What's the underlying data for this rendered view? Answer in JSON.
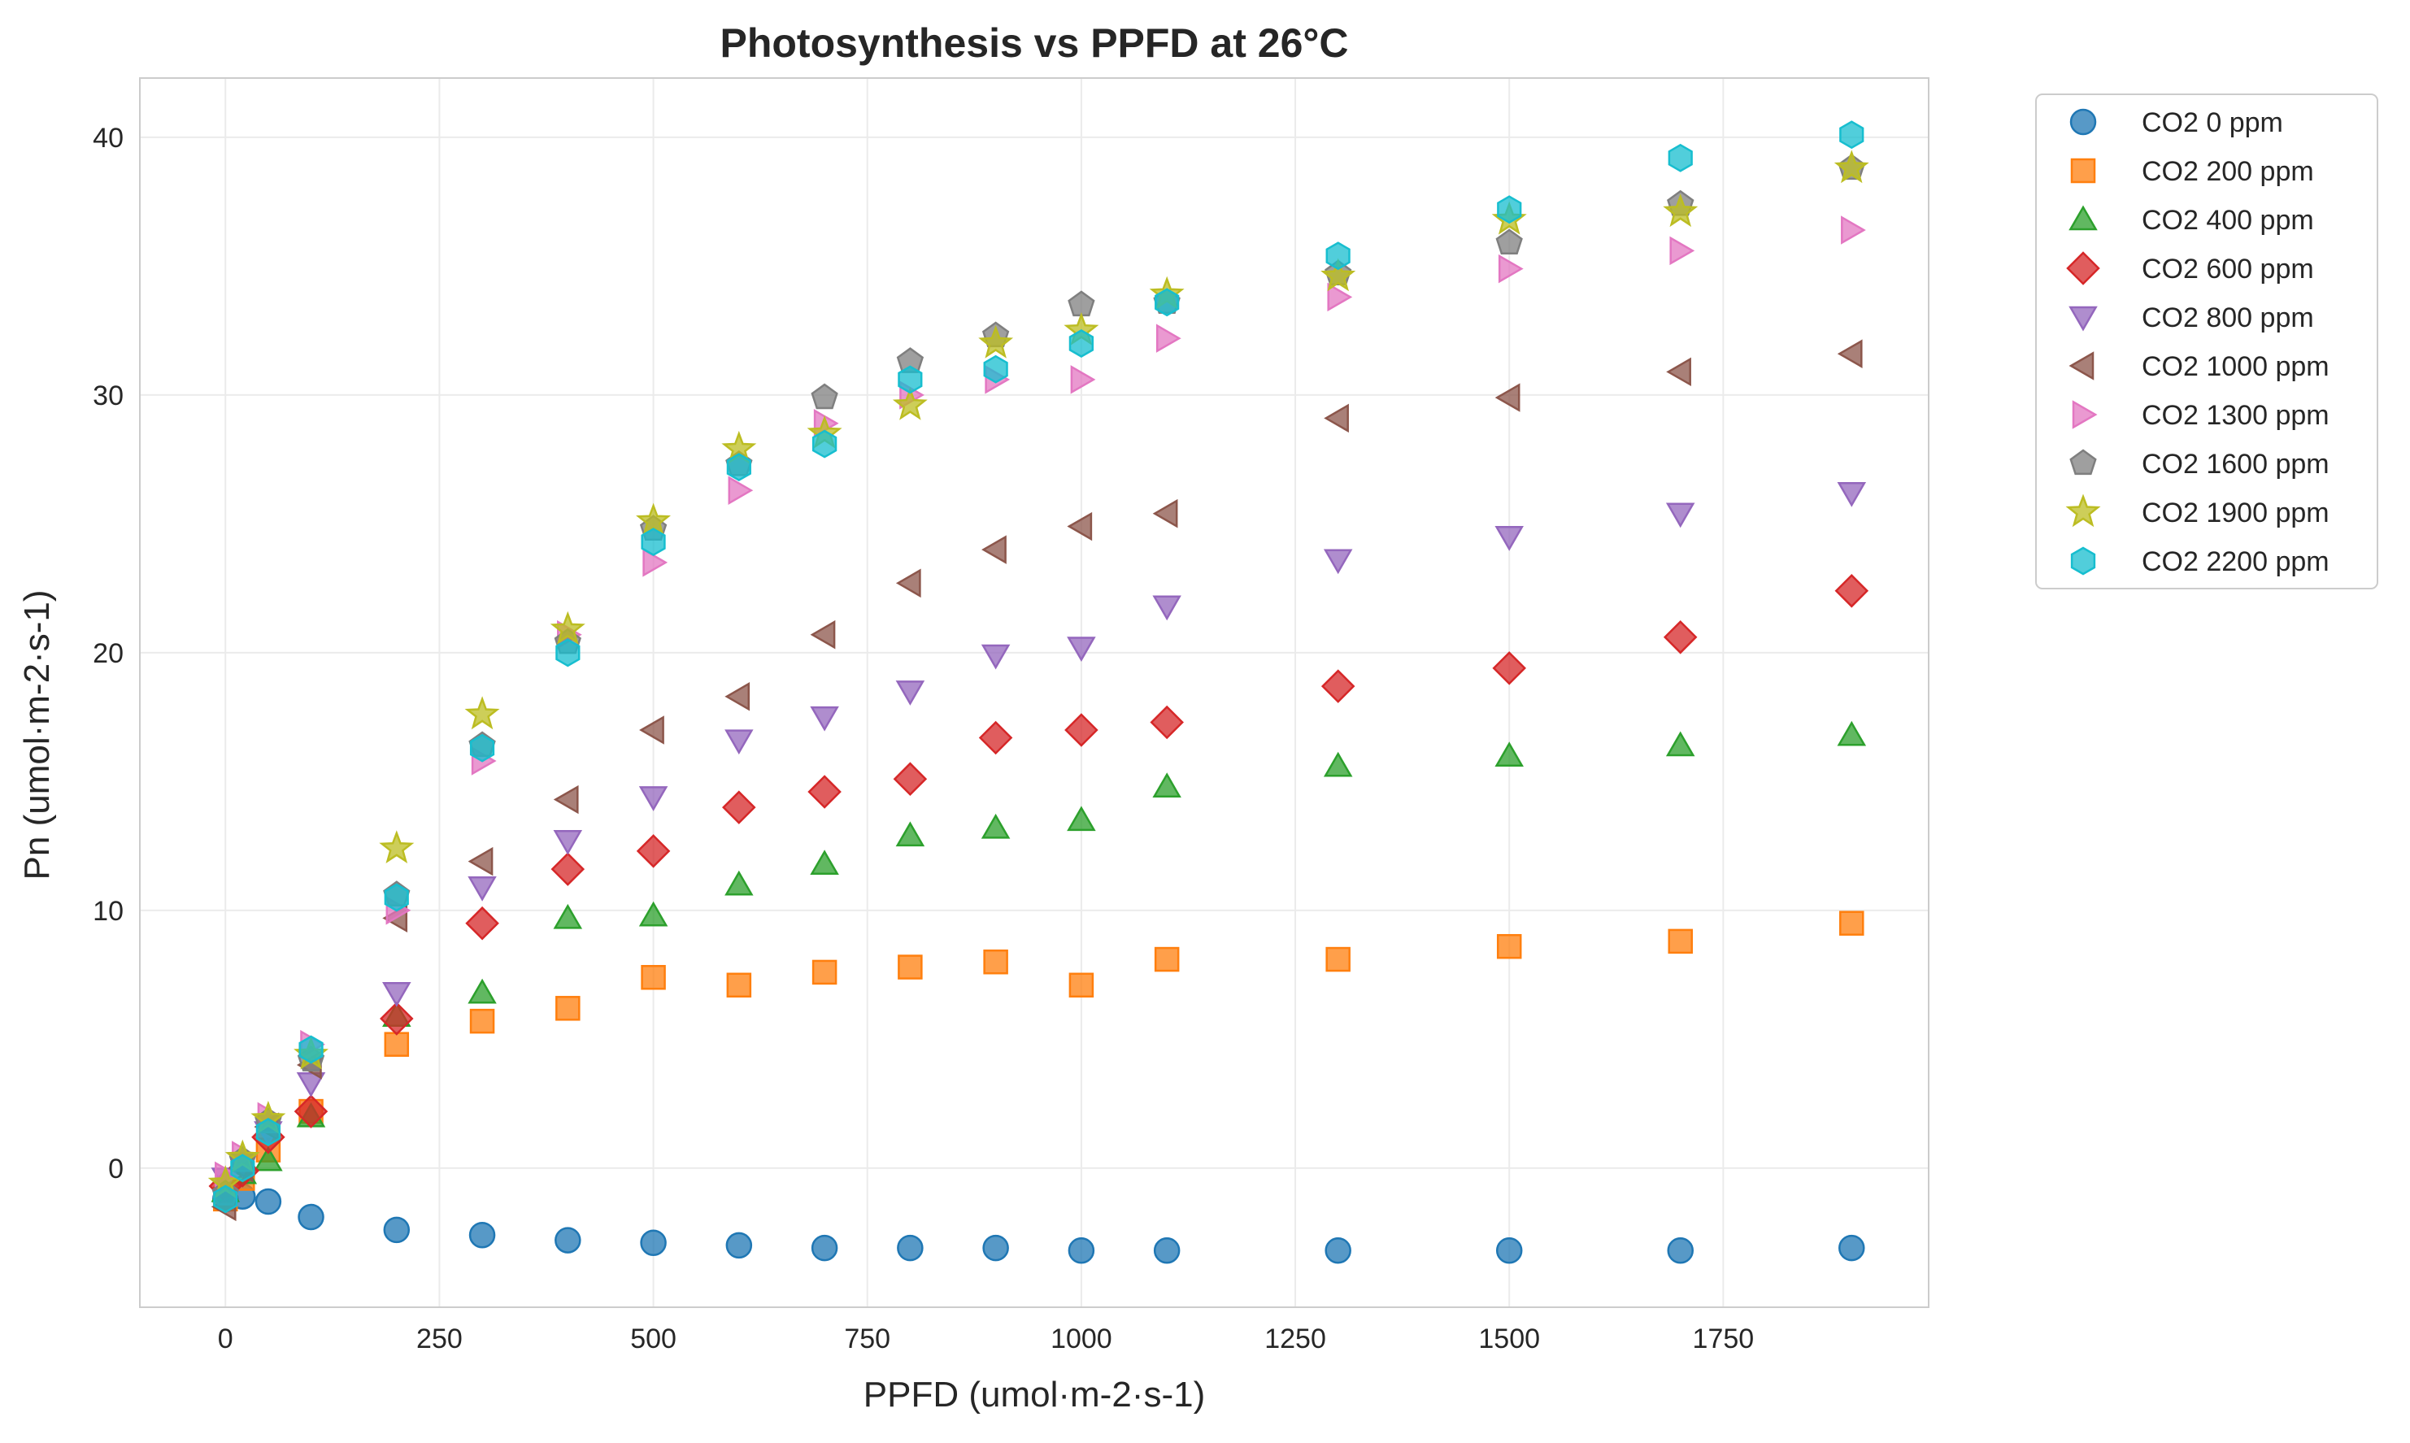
{
  "chart_data": {
    "type": "scatter",
    "title": "Photosynthesis vs PPFD at 26°C",
    "xlabel": "PPFD (umol·m-2·s-1)",
    "ylabel": "Pn (umol·m-2·s-1)",
    "xlim": [
      -100,
      1990
    ],
    "ylim": [
      -5.4,
      42.3
    ],
    "xticks": [
      0,
      250,
      500,
      750,
      1000,
      1250,
      1500,
      1750
    ],
    "yticks": [
      0,
      10,
      20,
      30,
      40
    ],
    "grid": true,
    "legend_position": "outside-right-top",
    "x": [
      0,
      20,
      50,
      100,
      200,
      300,
      400,
      500,
      600,
      700,
      800,
      900,
      1000,
      1100,
      1300,
      1500,
      1700,
      1900
    ],
    "series": [
      {
        "name": "CO2 0 ppm",
        "marker": "circle",
        "color": "#1f77b4",
        "values": [
          -1.2,
          -1.1,
          -1.3,
          -1.9,
          -2.4,
          -2.6,
          -2.8,
          -2.9,
          -3.0,
          -3.1,
          -3.1,
          -3.1,
          -3.2,
          -3.2,
          -3.2,
          -3.2,
          -3.2,
          -3.1
        ]
      },
      {
        "name": "CO2 200 ppm",
        "marker": "square",
        "color": "#ff7f0e",
        "values": [
          -1.2,
          -0.4,
          0.7,
          2.2,
          4.8,
          5.7,
          6.2,
          7.4,
          7.1,
          7.6,
          7.8,
          8.0,
          7.1,
          8.1,
          8.1,
          8.6,
          8.8,
          9.5
        ]
      },
      {
        "name": "CO2 400 ppm",
        "marker": "triangle-up",
        "color": "#2ca02c",
        "values": [
          -0.9,
          -0.2,
          0.3,
          2.0,
          5.9,
          6.8,
          9.7,
          9.8,
          11.0,
          11.8,
          12.9,
          13.2,
          13.5,
          14.8,
          15.6,
          16.0,
          16.4,
          16.8
        ]
      },
      {
        "name": "CO2 600 ppm",
        "marker": "diamond",
        "color": "#d62728",
        "values": [
          -0.7,
          -0.1,
          1.2,
          2.2,
          5.8,
          9.5,
          11.6,
          12.3,
          14.0,
          14.6,
          15.1,
          16.7,
          17.0,
          17.3,
          18.7,
          19.4,
          20.6,
          22.4
        ]
      },
      {
        "name": "CO2 800 ppm",
        "marker": "triangle-down",
        "color": "#9467bd",
        "values": [
          -0.4,
          0.2,
          1.4,
          3.3,
          6.8,
          10.9,
          12.7,
          14.4,
          16.6,
          17.5,
          18.5,
          19.9,
          20.2,
          21.8,
          23.6,
          24.5,
          25.4,
          26.2
        ]
      },
      {
        "name": "CO2 1000 ppm",
        "marker": "triangle-left",
        "color": "#8c564b",
        "values": [
          -1.5,
          0.0,
          1.6,
          4.0,
          9.7,
          11.9,
          14.3,
          17.0,
          18.3,
          20.7,
          22.7,
          24.0,
          24.9,
          25.4,
          29.1,
          29.9,
          30.9,
          31.6
        ]
      },
      {
        "name": "CO2 1300 ppm",
        "marker": "triangle-right",
        "color": "#e377c2",
        "values": [
          -0.3,
          0.5,
          2.0,
          4.8,
          10.0,
          15.8,
          20.7,
          23.5,
          26.3,
          28.9,
          30.0,
          30.6,
          30.6,
          32.2,
          33.8,
          34.9,
          35.6,
          36.4
        ]
      },
      {
        "name": "CO2 1600 ppm",
        "marker": "pentagon",
        "color": "#7f7f7f",
        "values": [
          -1.0,
          0.3,
          1.8,
          4.2,
          10.6,
          16.4,
          20.4,
          24.8,
          27.3,
          29.9,
          31.3,
          32.3,
          33.5,
          33.6,
          34.7,
          35.9,
          37.4,
          38.8
        ]
      },
      {
        "name": "CO2 1900 ppm",
        "marker": "star",
        "color": "#bcbd22",
        "values": [
          -0.6,
          0.4,
          1.9,
          4.4,
          12.4,
          17.6,
          20.9,
          25.1,
          27.9,
          28.5,
          29.6,
          32.0,
          32.5,
          33.9,
          34.6,
          36.8,
          37.1,
          38.8
        ]
      },
      {
        "name": "CO2 2200 ppm",
        "marker": "hexagon",
        "color": "#17becf",
        "values": [
          -1.2,
          0.0,
          1.4,
          4.6,
          10.5,
          16.3,
          20.0,
          24.3,
          27.2,
          28.1,
          30.6,
          31.0,
          32.0,
          33.6,
          35.4,
          37.2,
          39.2,
          40.1
        ]
      }
    ]
  }
}
